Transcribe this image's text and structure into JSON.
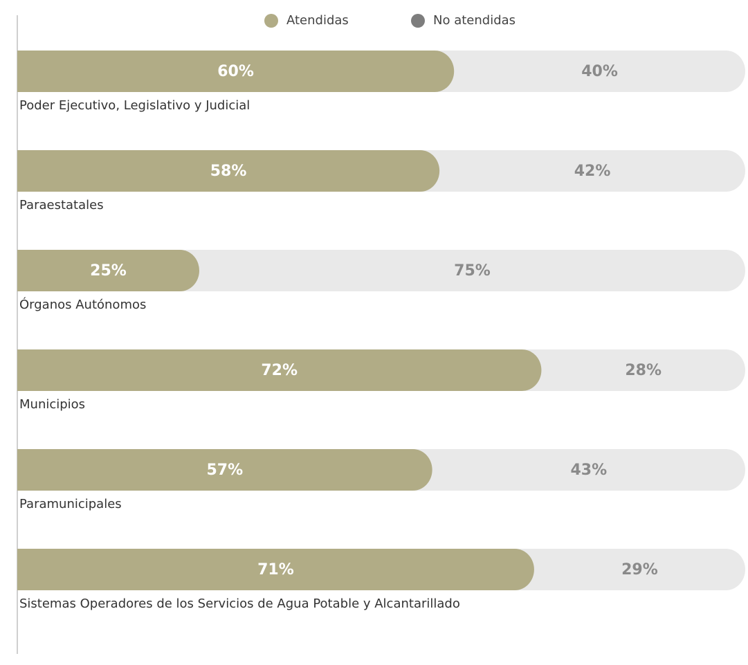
{
  "chart_data": {
    "type": "stacked-bar",
    "categories": [
      "Poder Ejecutivo, Legislativo y Judicial",
      "Paraestatales",
      "Órganos Autónomos",
      "Municipios",
      "Paramunicipales",
      "Sistemas Operadores de los Servicios de Agua Potable y Alcantarillado"
    ],
    "series": [
      {
        "name": "Atendidas",
        "color": "#b1ac86",
        "legend_marker_color": "#b1ac86",
        "label_color": "#ffffff",
        "values": [
          60,
          58,
          25,
          72,
          57,
          71
        ],
        "value_labels": [
          "60%",
          "58%",
          "25%",
          "72%",
          "57%",
          "71%"
        ]
      },
      {
        "name": "No atendidas",
        "color": "#e9e9e9",
        "legend_marker_color": "#7d7d7d",
        "label_color": "#8a8a8a",
        "values": [
          40,
          42,
          75,
          28,
          43,
          29
        ],
        "value_labels": [
          "40%",
          "42%",
          "75%",
          "28%",
          "43%",
          "29%"
        ]
      }
    ],
    "xlim": [
      0,
      100
    ]
  }
}
